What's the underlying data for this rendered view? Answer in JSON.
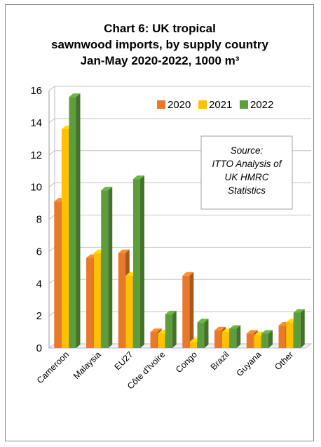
{
  "chart_data": {
    "type": "bar",
    "title_lines": [
      "Chart 6: UK tropical",
      "sawnwood imports, by supply country",
      "Jan-May 2020-2022, 1000 m³"
    ],
    "categories": [
      "Cameroon",
      "Malaysia",
      "EU27",
      "Côte d'Ivoire",
      "Congo",
      "Brazil",
      "Guyana",
      "Other"
    ],
    "series": [
      {
        "name": "2020",
        "color": "#e8792a",
        "values": [
          9.1,
          5.6,
          5.9,
          1.0,
          4.5,
          1.1,
          0.9,
          1.4
        ]
      },
      {
        "name": "2021",
        "color": "#ffc000",
        "values": [
          13.6,
          5.9,
          4.5,
          0.9,
          0.4,
          1.0,
          0.8,
          1.6
        ]
      },
      {
        "name": "2022",
        "color": "#5e9e3a",
        "values": [
          15.6,
          9.8,
          10.5,
          2.1,
          1.6,
          1.2,
          0.9,
          2.2
        ]
      }
    ],
    "yticks": [
      "0",
      "2",
      "4",
      "6",
      "8",
      "10",
      "12",
      "14",
      "16"
    ],
    "ylim": [
      0,
      16
    ],
    "grid": true,
    "legend_position": "top-right",
    "annotation_lines": [
      "Source:",
      "ITTO Analysis of",
      "UK HMRC",
      "Statistics"
    ]
  }
}
